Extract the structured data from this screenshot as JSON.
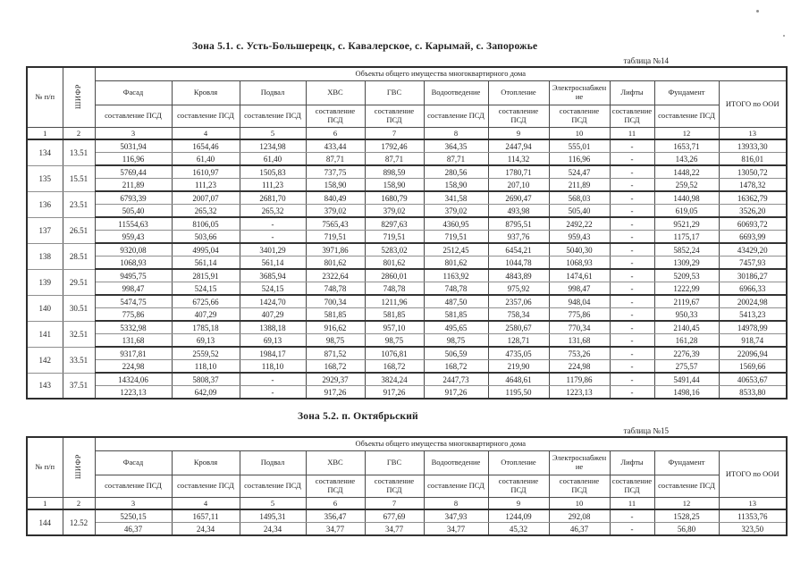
{
  "tables": [
    {
      "title": "Зона 5.1. с. Усть-Большерецк, с. Кавалерское, с. Карымай, с. Запорожье",
      "label": "таблица №14",
      "header": {
        "col_num": "№ п/п",
        "col_cipher": "ШИФР",
        "group_header": "Объекты общего имущества многоквартирного дома",
        "object_columns": [
          "Фасад",
          "Кровля",
          "Подвал",
          "ХВС",
          "ГВС",
          "Водоотведение",
          "Отопление",
          "Электроснабжение",
          "Лифты",
          "Фундамент"
        ],
        "sub_header": "составление ПСД",
        "total_column": "ИТОГО по ООИ",
        "column_numbers": [
          "1",
          "2",
          "3",
          "4",
          "5",
          "6",
          "7",
          "8",
          "9",
          "10",
          "11",
          "12",
          "13"
        ]
      },
      "rows": [
        {
          "num": "134",
          "cipher": "13.51",
          "line1": [
            "5031,94",
            "1654,46",
            "1234,98",
            "433,44",
            "1792,46",
            "364,35",
            "2447,94",
            "555,01",
            "-",
            "1653,71",
            "13933,30"
          ],
          "line2": [
            "116,96",
            "61,40",
            "61,40",
            "87,71",
            "87,71",
            "87,71",
            "114,32",
            "116,96",
            "-",
            "143,26",
            "816,01"
          ]
        },
        {
          "num": "135",
          "cipher": "15.51",
          "line1": [
            "5769,44",
            "1610,97",
            "1505,83",
            "737,75",
            "898,59",
            "280,56",
            "1780,71",
            "524,47",
            "-",
            "1448,22",
            "13050,72"
          ],
          "line2": [
            "211,89",
            "111,23",
            "111,23",
            "158,90",
            "158,90",
            "158,90",
            "207,10",
            "211,89",
            "-",
            "259,52",
            "1478,32"
          ]
        },
        {
          "num": "136",
          "cipher": "23.51",
          "line1": [
            "6793,39",
            "2007,07",
            "2681,70",
            "840,49",
            "1680,79",
            "341,58",
            "2690,47",
            "568,03",
            "-",
            "1440,98",
            "16362,79"
          ],
          "line2": [
            "505,40",
            "265,32",
            "265,32",
            "379,02",
            "379,02",
            "379,02",
            "493,98",
            "505,40",
            "-",
            "619,05",
            "3526,20"
          ]
        },
        {
          "num": "137",
          "cipher": "26.51",
          "line1": [
            "11554,63",
            "8106,05",
            "-",
            "7565,43",
            "8297,63",
            "4360,95",
            "8795,51",
            "2492,22",
            "-",
            "9521,29",
            "60693,72"
          ],
          "line2": [
            "959,43",
            "503,66",
            "-",
            "719,51",
            "719,51",
            "719,51",
            "937,76",
            "959,43",
            "-",
            "1175,17",
            "6693,99"
          ]
        },
        {
          "num": "138",
          "cipher": "28.51",
          "line1": [
            "9320,08",
            "4995,04",
            "3401,29",
            "3971,86",
            "5283,02",
            "2512,45",
            "6454,21",
            "5040,30",
            "-",
            "5852,24",
            "43429,20"
          ],
          "line2": [
            "1068,93",
            "561,14",
            "561,14",
            "801,62",
            "801,62",
            "801,62",
            "1044,78",
            "1068,93",
            "-",
            "1309,29",
            "7457,93"
          ]
        },
        {
          "num": "139",
          "cipher": "29.51",
          "line1": [
            "9495,75",
            "2815,91",
            "3685,94",
            "2322,64",
            "2860,01",
            "1163,92",
            "4843,89",
            "1474,61",
            "-",
            "5209,53",
            "30186,27"
          ],
          "line2": [
            "998,47",
            "524,15",
            "524,15",
            "748,78",
            "748,78",
            "748,78",
            "975,92",
            "998,47",
            "-",
            "1222,99",
            "6966,33"
          ]
        },
        {
          "num": "140",
          "cipher": "30.51",
          "line1": [
            "5474,75",
            "6725,66",
            "1424,70",
            "700,34",
            "1211,96",
            "487,50",
            "2357,06",
            "948,04",
            "-",
            "2119,67",
            "20024,98"
          ],
          "line2": [
            "775,86",
            "407,29",
            "407,29",
            "581,85",
            "581,85",
            "581,85",
            "758,34",
            "775,86",
            "-",
            "950,33",
            "5413,23"
          ]
        },
        {
          "num": "141",
          "cipher": "32.51",
          "line1": [
            "5332,98",
            "1785,18",
            "1388,18",
            "916,62",
            "957,10",
            "495,65",
            "2580,67",
            "770,34",
            "-",
            "2140,45",
            "14978,99"
          ],
          "line2": [
            "131,68",
            "69,13",
            "69,13",
            "98,75",
            "98,75",
            "98,75",
            "128,71",
            "131,68",
            "-",
            "161,28",
            "918,74"
          ]
        },
        {
          "num": "142",
          "cipher": "33.51",
          "line1": [
            "9317,81",
            "2559,52",
            "1984,17",
            "871,52",
            "1076,81",
            "506,59",
            "4735,05",
            "753,26",
            "-",
            "2276,39",
            "22096,94"
          ],
          "line2": [
            "224,98",
            "118,10",
            "118,10",
            "168,72",
            "168,72",
            "168,72",
            "219,90",
            "224,98",
            "-",
            "275,57",
            "1569,66"
          ]
        },
        {
          "num": "143",
          "cipher": "37.51",
          "line1": [
            "14324,06",
            "5808,37",
            "-",
            "2929,37",
            "3824,24",
            "2447,73",
            "4648,61",
            "1179,86",
            "-",
            "5491,44",
            "40653,67"
          ],
          "line2": [
            "1223,13",
            "642,09",
            "-",
            "917,26",
            "917,26",
            "917,26",
            "1195,50",
            "1223,13",
            "-",
            "1498,16",
            "8533,80"
          ]
        }
      ]
    },
    {
      "title": "Зона 5.2. п. Октябрьский",
      "label": "таблица №15",
      "header": {
        "col_num": "№ п/п",
        "col_cipher": "ШИФР",
        "group_header": "Объекты общего имущества многоквартирного дома",
        "object_columns": [
          "Фасад",
          "Кровля",
          "Подвал",
          "ХВС",
          "ГВС",
          "Водоотведение",
          "Отопление",
          "Электроснабжение",
          "Лифты",
          "Фундамент"
        ],
        "sub_header": "составление ПСД",
        "total_column": "ИТОГО по ООИ",
        "column_numbers": [
          "1",
          "2",
          "3",
          "4",
          "5",
          "6",
          "7",
          "8",
          "9",
          "10",
          "11",
          "12",
          "13"
        ]
      },
      "rows": [
        {
          "num": "144",
          "cipher": "12.52",
          "line1": [
            "5250,15",
            "1657,11",
            "1495,31",
            "356,47",
            "677,69",
            "347,93",
            "1244,09",
            "292,08",
            "-",
            "1528,25",
            "11353,76"
          ],
          "line2": [
            "46,37",
            "24,34",
            "24,34",
            "34,77",
            "34,77",
            "34,77",
            "45,32",
            "46,37",
            "-",
            "56,80",
            "323,50"
          ]
        }
      ]
    }
  ]
}
